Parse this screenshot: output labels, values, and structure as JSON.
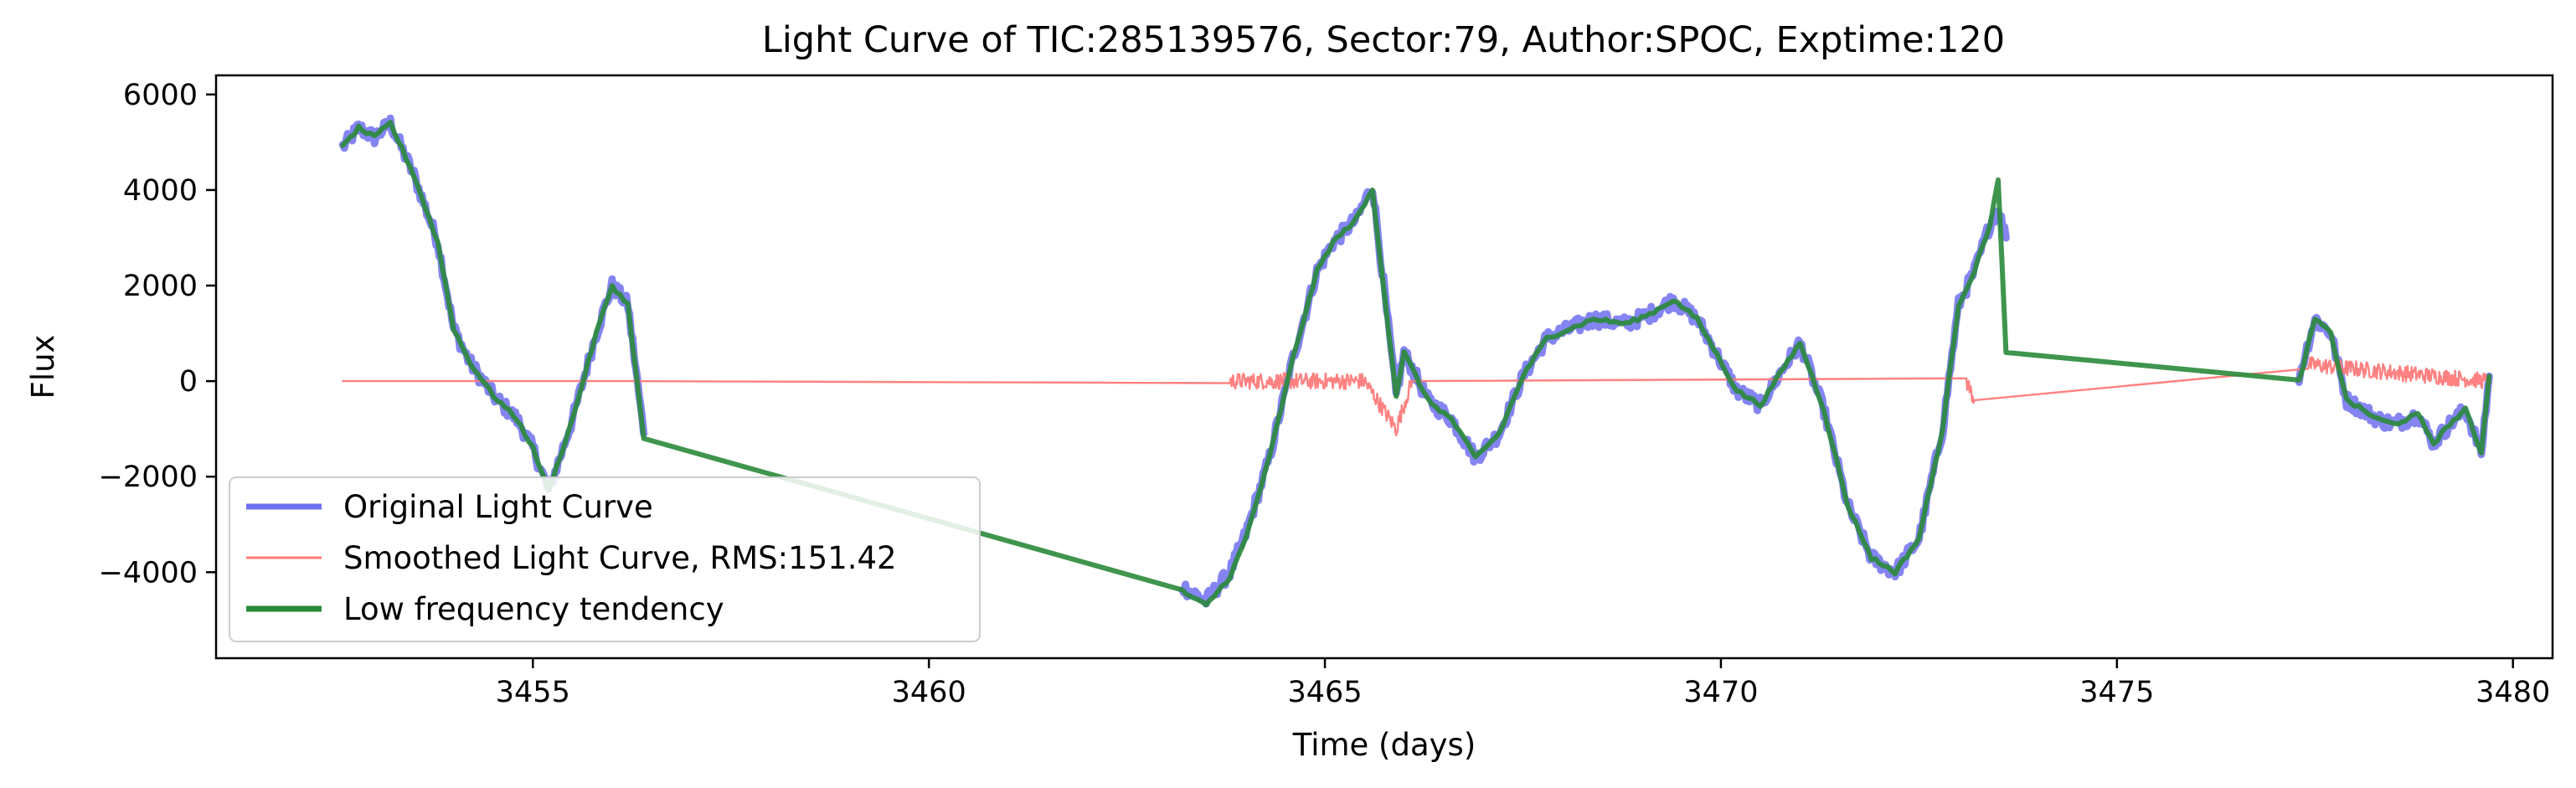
{
  "chart_data": {
    "type": "line",
    "title": "Light Curve of TIC:285139576, Sector:79, Author:SPOC, Exptime:120",
    "xlabel": "Time (days)",
    "ylabel": "Flux",
    "xlim": [
      3451.0,
      3480.5
    ],
    "ylim": [
      -5800,
      6400
    ],
    "x_ticks": [
      3455,
      3460,
      3465,
      3470,
      3475,
      3480
    ],
    "y_ticks": [
      -4000,
      -2000,
      0,
      2000,
      4000,
      6000
    ],
    "grid": false,
    "legend_position": "lower-left",
    "series": [
      {
        "name": "Original Light Curve",
        "color": "#6f6ff0",
        "style": "thick-noisy",
        "x": [
          3452.6,
          3452.8,
          3453.0,
          3453.2,
          3453.5,
          3453.8,
          3454.0,
          3454.2,
          3454.5,
          3454.8,
          3455.0,
          3455.2,
          3455.5,
          3455.8,
          3456.0,
          3456.2,
          3456.4
        ],
        "y": [
          4900,
          5300,
          5100,
          5400,
          4300,
          2900,
          1100,
          400,
          -300,
          -800,
          -1400,
          -2300,
          -800,
          1000,
          2000,
          1600,
          -1100
        ]
      },
      {
        "name": "",
        "color": "#6f6ff0",
        "style": "thick-noisy",
        "x": [
          3463.2,
          3463.5,
          3463.8,
          3464.0,
          3464.3,
          3464.6,
          3464.9,
          3465.1,
          3465.4,
          3465.6,
          3465.9,
          3466.0,
          3466.3,
          3466.6,
          3466.9,
          3467.2,
          3467.5,
          3467.8,
          3468.1,
          3468.4,
          3468.8,
          3469.1,
          3469.4,
          3469.7,
          3469.9,
          3470.2,
          3470.5,
          3470.8,
          3471.0,
          3471.3,
          3471.6,
          3471.9,
          3472.2,
          3472.5,
          3472.8,
          3473.0,
          3473.2,
          3473.4,
          3473.5,
          3473.6
        ],
        "y": [
          -4300,
          -4600,
          -4000,
          -3200,
          -1600,
          500,
          2300,
          2900,
          3400,
          4100,
          -300,
          600,
          -400,
          -800,
          -1600,
          -1100,
          100,
          900,
          1100,
          1300,
          1200,
          1400,
          1700,
          1300,
          700,
          -200,
          -500,
          300,
          800,
          -600,
          -2600,
          -3700,
          -4000,
          -3300,
          -1000,
          1600,
          2300,
          3300,
          3600,
          3000
        ]
      },
      {
        "name": "",
        "color": "#6f6ff0",
        "style": "thick-noisy",
        "x": [
          3477.3,
          3477.5,
          3477.7,
          3477.9,
          3478.1,
          3478.3,
          3478.5,
          3478.8,
          3479.0,
          3479.2,
          3479.4,
          3479.6,
          3479.7
        ],
        "y": [
          100,
          1300,
          1000,
          -400,
          -600,
          -800,
          -900,
          -700,
          -1300,
          -900,
          -600,
          -1500,
          100
        ]
      },
      {
        "name": "Smoothed Light Curve, RMS:151.42",
        "color": "#ff7a7a",
        "style": "thin-noisy",
        "x": [
          3452.6,
          3456.2,
          3463.8,
          3465.0,
          3465.5,
          3465.9,
          3466.1,
          3473.1,
          3473.2,
          3477.4,
          3479.7
        ],
        "y": [
          0,
          0,
          0,
          0,
          0,
          -1000,
          0,
          0,
          -400,
          350,
          0
        ]
      },
      {
        "name": "Low frequency tendency",
        "color": "#2a8a3a",
        "style": "thick",
        "x": [
          3452.6,
          3452.8,
          3453.0,
          3453.2,
          3453.5,
          3453.8,
          3454.0,
          3454.2,
          3454.5,
          3454.8,
          3455.0,
          3455.2,
          3455.5,
          3455.8,
          3456.0,
          3456.2,
          3456.4,
          3463.2,
          3463.5,
          3463.8,
          3464.0,
          3464.3,
          3464.6,
          3464.9,
          3465.1,
          3465.4,
          3465.6,
          3465.9,
          3466.0,
          3466.3,
          3466.6,
          3466.9,
          3467.2,
          3467.5,
          3467.8,
          3468.1,
          3468.4,
          3468.8,
          3469.1,
          3469.4,
          3469.7,
          3469.9,
          3470.2,
          3470.5,
          3470.8,
          3471.0,
          3471.3,
          3471.6,
          3471.9,
          3472.2,
          3472.5,
          3472.8,
          3473.0,
          3473.2,
          3473.4,
          3473.5,
          3473.6,
          3477.3,
          3477.5,
          3477.7,
          3477.9,
          3478.1,
          3478.3,
          3478.5,
          3478.8,
          3479.0,
          3479.2,
          3479.4,
          3479.6,
          3479.7
        ],
        "y": [
          4900,
          5300,
          5100,
          5400,
          4300,
          2900,
          1100,
          400,
          -300,
          -800,
          -1400,
          -2300,
          -800,
          1000,
          2000,
          1600,
          -1200,
          -4400,
          -4700,
          -4100,
          -3300,
          -1600,
          500,
          2300,
          2900,
          3400,
          4000,
          -300,
          600,
          -400,
          -800,
          -1600,
          -1100,
          100,
          900,
          1100,
          1300,
          1200,
          1400,
          1700,
          1300,
          700,
          -200,
          -500,
          300,
          800,
          -600,
          -2600,
          -3700,
          -4000,
          -3300,
          -1000,
          1600,
          2300,
          3300,
          4200,
          600,
          0,
          1300,
          1000,
          -400,
          -600,
          -800,
          -900,
          -700,
          -1300,
          -900,
          -600,
          -1500,
          100
        ]
      }
    ]
  }
}
